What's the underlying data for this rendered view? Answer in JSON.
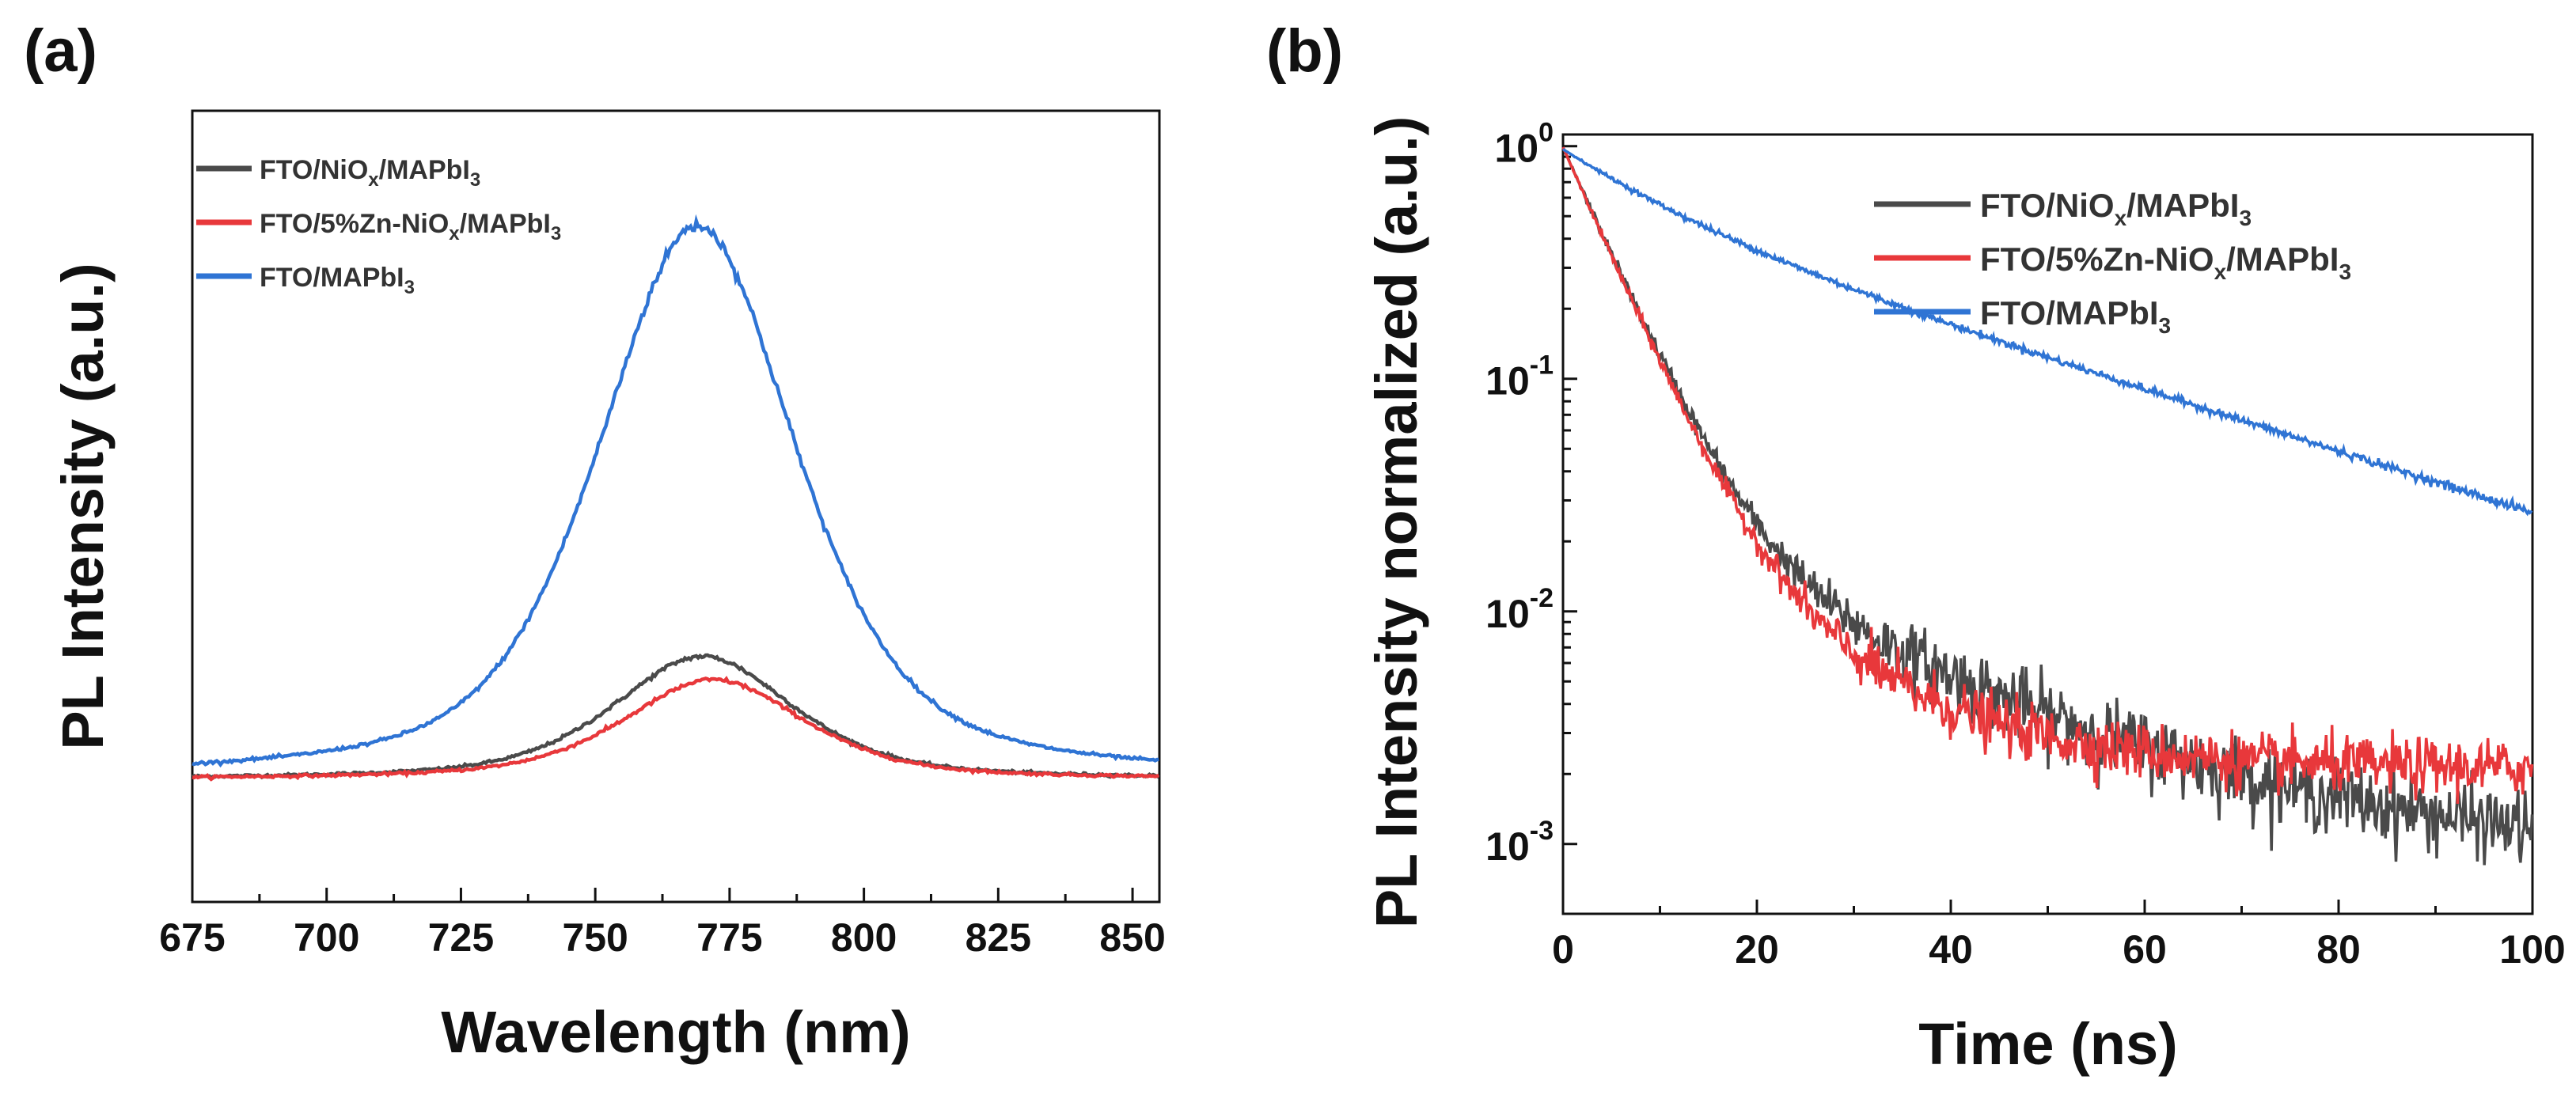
{
  "chart_data": [
    {
      "panel": "(a)",
      "type": "line",
      "title": "",
      "xlabel": "Wavelength (nm)",
      "ylabel": "PL Intensity (a.u.)",
      "xlim": [
        675,
        855
      ],
      "ylim": [
        0,
        1.1
      ],
      "xticks": [
        675,
        700,
        725,
        750,
        775,
        800,
        825,
        850
      ],
      "xtick_labels": [
        "675",
        "700",
        "725",
        "750",
        "775",
        "800",
        "825",
        "850"
      ],
      "legend_position": "top-left",
      "series": [
        {
          "name": "FTO/NiOx/MAPbI3",
          "legend_main": "FTO/NiO",
          "legend_sub1": "x",
          "legend_mid": "/MAPbI",
          "legend_sub2": "3",
          "legend_end": "",
          "color": "#4a4a4a",
          "peak_nm": 770,
          "peak": 0.222,
          "fwhm_nm": 40
        },
        {
          "name": "FTO/5%Zn-NiOx/MAPbI3",
          "legend_main": "FTO/5%Zn-NiO",
          "legend_sub1": "x",
          "legend_mid": "/MAPbI",
          "legend_sub2": "3",
          "legend_end": "",
          "color": "#e8383b",
          "peak_nm": 772,
          "peak": 0.18,
          "fwhm_nm": 40
        },
        {
          "name": "FTO/MAPbI3",
          "legend_main": "FTO/MAPbI",
          "legend_sub1": "3",
          "legend_mid": "",
          "legend_sub2": "",
          "legend_end": "",
          "color": "#2f74d4",
          "peak_nm": 769,
          "peak": 1.0,
          "fwhm_nm": 44
        }
      ]
    },
    {
      "panel": "(b)",
      "type": "line",
      "title": "",
      "xlabel": "Time (ns)",
      "ylabel": "PL Intensity normalized (a.u.)",
      "xlim": [
        0,
        100
      ],
      "ylim_log10": [
        -3.3,
        0.05
      ],
      "xticks": [
        0,
        20,
        40,
        60,
        80,
        100
      ],
      "xtick_labels": [
        "0",
        "20",
        "40",
        "60",
        "80",
        "100"
      ],
      "yticks": [
        1,
        0.1,
        0.01,
        0.001
      ],
      "ytick_base": [
        "10",
        "10",
        "10",
        "10"
      ],
      "ytick_exp": [
        "0",
        "-1",
        "-2",
        "-3"
      ],
      "legend_position": "top-right",
      "series": [
        {
          "name": "FTO/NiOx/MAPbI3",
          "legend_main": "FTO/NiO",
          "legend_sub1": "x",
          "legend_mid": "/MAPbI",
          "legend_sub2": "3",
          "legend_end": "",
          "color": "#4a4a4a",
          "a1": 0.96,
          "tau1": 4.6,
          "a2": 0.026,
          "tau2": 22,
          "offset": 0.0009,
          "noise": 0.18
        },
        {
          "name": "FTO/5%Zn-NiOx/MAPbI3",
          "legend_main": "FTO/5%Zn-NiO",
          "legend_sub1": "x",
          "legend_mid": "/MAPbI",
          "legend_sub2": "3",
          "legend_end": "",
          "color": "#e8383b",
          "a1": 0.96,
          "tau1": 4.5,
          "a2": 0.028,
          "tau2": 14,
          "offset": 0.0021,
          "noise": 0.14
        },
        {
          "name": "FTO/MAPbI3",
          "legend_main": "FTO/MAPbI",
          "legend_sub1": "3",
          "legend_mid": "",
          "legend_sub2": "",
          "legend_end": "",
          "color": "#2f74d4",
          "a1": 0.42,
          "tau1": 10,
          "a2": 0.55,
          "tau2": 33,
          "offset": 0.0,
          "noise": 0.06
        }
      ]
    }
  ]
}
